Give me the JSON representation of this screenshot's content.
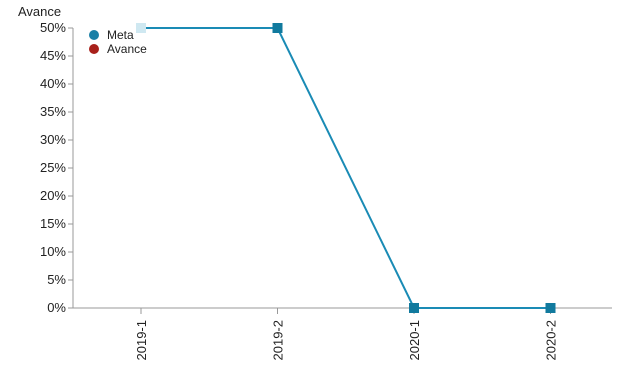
{
  "chart_data": {
    "type": "line",
    "title": "",
    "ylabel": "Avance",
    "xlabel": "",
    "categories": [
      "2019-1",
      "2019-2",
      "2020-1",
      "2020-2"
    ],
    "yticks": [
      "0%",
      "5%",
      "10%",
      "15%",
      "20%",
      "25%",
      "30%",
      "35%",
      "40%",
      "45%",
      "50%"
    ],
    "ylim": [
      0,
      50
    ],
    "grid": false,
    "legend_position": "top-left",
    "legend": [
      {
        "name": "Meta",
        "color": "#1a7fa6"
      },
      {
        "name": "Avance",
        "color": "#a8201a"
      }
    ],
    "series": [
      {
        "name": "Meta",
        "values": [
          50,
          50,
          0,
          0
        ],
        "color": "#1a8bb5"
      }
    ]
  }
}
